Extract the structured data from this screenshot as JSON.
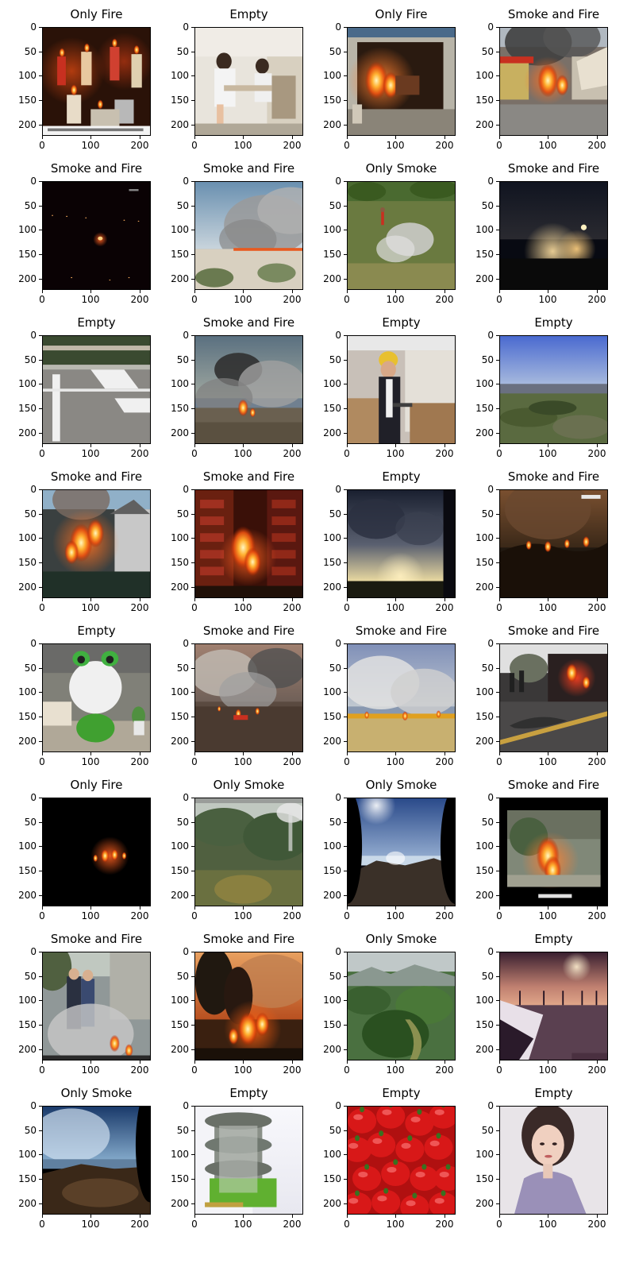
{
  "grid": {
    "rows": 8,
    "cols": 4,
    "x_ticks": [
      "0",
      "100",
      "200"
    ],
    "y_ticks": [
      "0",
      "50",
      "100",
      "150",
      "200"
    ],
    "panels": [
      {
        "title": "Only Fire",
        "scene": "candles"
      },
      {
        "title": "Empty",
        "scene": "indoor-people"
      },
      {
        "title": "Only Fire",
        "scene": "room-fire"
      },
      {
        "title": "Smoke and Fire",
        "scene": "station-fire"
      },
      {
        "title": "Smoke and Fire",
        "scene": "night-fire"
      },
      {
        "title": "Smoke and Fire",
        "scene": "beach-smoke"
      },
      {
        "title": "Only Smoke",
        "scene": "field-smoke"
      },
      {
        "title": "Smoke and Fire",
        "scene": "night-city"
      },
      {
        "title": "Empty",
        "scene": "crosswalk"
      },
      {
        "title": "Smoke and Fire",
        "scene": "wild-smoke"
      },
      {
        "title": "Empty",
        "scene": "warehouse-worker"
      },
      {
        "title": "Empty",
        "scene": "landscape-sky"
      },
      {
        "title": "Smoke and Fire",
        "scene": "house-fire"
      },
      {
        "title": "Smoke and Fire",
        "scene": "building-fire"
      },
      {
        "title": "Empty",
        "scene": "sunset-clouds"
      },
      {
        "title": "Smoke and Fire",
        "scene": "hill-fire"
      },
      {
        "title": "Empty",
        "scene": "toy-frog"
      },
      {
        "title": "Smoke and Fire",
        "scene": "field-fire-smoke"
      },
      {
        "title": "Smoke and Fire",
        "scene": "grass-fire"
      },
      {
        "title": "Smoke and Fire",
        "scene": "firefighter-hose"
      },
      {
        "title": "Only Fire",
        "scene": "dark-flame"
      },
      {
        "title": "Only Smoke",
        "scene": "forest-smoke"
      },
      {
        "title": "Only Smoke",
        "scene": "mountain-camera"
      },
      {
        "title": "Smoke and Fire",
        "scene": "framed-fire"
      },
      {
        "title": "Smoke and Fire",
        "scene": "street-smoke"
      },
      {
        "title": "Smoke and Fire",
        "scene": "forest-fire"
      },
      {
        "title": "Only Smoke",
        "scene": "green-valley"
      },
      {
        "title": "Empty",
        "scene": "sunset-road"
      },
      {
        "title": "Only Smoke",
        "scene": "camera-mountain"
      },
      {
        "title": "Empty",
        "scene": "building-model"
      },
      {
        "title": "Empty",
        "scene": "red-peppers"
      },
      {
        "title": "Empty",
        "scene": "portrait"
      }
    ]
  }
}
